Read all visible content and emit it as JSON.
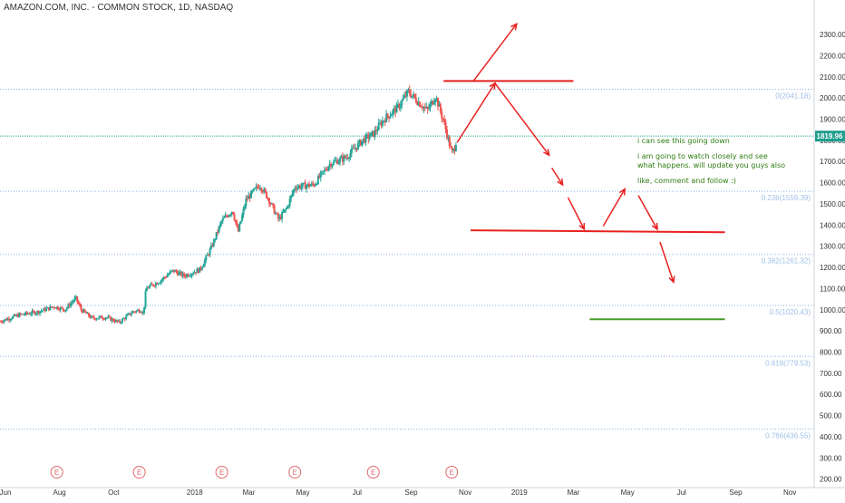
{
  "header": {
    "title": "AMAZON.COM, INC. - COMMON STOCK, 1D, NASDAQ"
  },
  "chart_data": {
    "type": "candlestick",
    "symbol": "AMAZON.COM, INC. - COMMON STOCK",
    "interval": "1D",
    "exchange": "NASDAQ",
    "ylim": [
      160,
      2420
    ],
    "y_ticks": [
      200,
      300,
      400,
      500,
      600,
      700,
      800,
      900,
      1000,
      1100,
      1200,
      1300,
      1400,
      1500,
      1600,
      1700,
      1800,
      1900,
      2000,
      2100,
      2200,
      2300
    ],
    "y_tick_labels": [
      "200.00",
      "300.00",
      "400.00",
      "500.00",
      "600.00",
      "700.00",
      "800.00",
      "900.00",
      "1000.00",
      "1100.00",
      "1200.00",
      "1300.00",
      "1400.00",
      "1500.00",
      "1600.00",
      "1700.00",
      "1800.00",
      "1900.00",
      "2000.00",
      "2100.00",
      "2200.00",
      "2300.00"
    ],
    "x_axis_labels": [
      "Jun",
      "Aug",
      "Oct",
      "2018",
      "Mar",
      "May",
      "Jul",
      "Sep",
      "Nov",
      "2019",
      "Mar",
      "May",
      "Jul",
      "Sep",
      "Nov"
    ],
    "x_label_months_index": [
      0,
      2,
      4,
      7,
      9,
      11,
      13,
      15,
      17,
      19,
      21,
      23,
      25,
      27,
      29
    ],
    "x_range_months_index": [
      -0.2,
      29.9
    ],
    "current_price": 1819.96,
    "current_price_label": "1819.96",
    "price_key_points": [
      {
        "m": -0.2,
        "v": 945
      },
      {
        "m": 0.5,
        "v": 975
      },
      {
        "m": 1.2,
        "v": 990
      },
      {
        "m": 1.8,
        "v": 1015
      },
      {
        "m": 2.2,
        "v": 1000
      },
      {
        "m": 2.6,
        "v": 1055
      },
      {
        "m": 2.8,
        "v": 1000
      },
      {
        "m": 3.2,
        "v": 960
      },
      {
        "m": 3.7,
        "v": 965
      },
      {
        "m": 4.2,
        "v": 940
      },
      {
        "m": 4.7,
        "v": 990
      },
      {
        "m": 5.0,
        "v": 1000
      },
      {
        "m": 5.1,
        "v": 980
      },
      {
        "m": 5.2,
        "v": 1100
      },
      {
        "m": 5.7,
        "v": 1135
      },
      {
        "m": 6.2,
        "v": 1185
      },
      {
        "m": 6.6,
        "v": 1160
      },
      {
        "m": 7.2,
        "v": 1190
      },
      {
        "m": 7.6,
        "v": 1290
      },
      {
        "m": 8.0,
        "v": 1420
      },
      {
        "m": 8.4,
        "v": 1470
      },
      {
        "m": 8.6,
        "v": 1365
      },
      {
        "m": 8.9,
        "v": 1520
      },
      {
        "m": 9.4,
        "v": 1590
      },
      {
        "m": 9.7,
        "v": 1530
      },
      {
        "m": 10.1,
        "v": 1425
      },
      {
        "m": 10.4,
        "v": 1480
      },
      {
        "m": 10.7,
        "v": 1580
      },
      {
        "m": 11.4,
        "v": 1590
      },
      {
        "m": 12.0,
        "v": 1690
      },
      {
        "m": 12.6,
        "v": 1720
      },
      {
        "m": 13.2,
        "v": 1800
      },
      {
        "m": 13.6,
        "v": 1830
      },
      {
        "m": 14.0,
        "v": 1900
      },
      {
        "m": 14.5,
        "v": 1955
      },
      {
        "m": 14.9,
        "v": 2030
      },
      {
        "m": 15.2,
        "v": 1990
      },
      {
        "m": 15.6,
        "v": 1940
      },
      {
        "m": 15.9,
        "v": 2010
      },
      {
        "m": 16.2,
        "v": 1890
      },
      {
        "m": 16.5,
        "v": 1740
      },
      {
        "m": 16.6,
        "v": 1760
      },
      {
        "m": 16.7,
        "v": 1820
      }
    ],
    "fib_levels": [
      {
        "ratio": "0",
        "price": 2041.18,
        "label": "0(2041.18)"
      },
      {
        "ratio": "0.236",
        "price": 1559.39,
        "label": "0.236(1559.39)"
      },
      {
        "ratio": "0.382",
        "price": 1261.32,
        "label": "0.382(1261.32)"
      },
      {
        "ratio": "0.5",
        "price": 1020.43,
        "label": "0.5(1020.43)"
      },
      {
        "ratio": "0.618",
        "price": 779.53,
        "label": "0.618(779.53)"
      },
      {
        "ratio": "0.786",
        "price": 436.55,
        "label": "0.786(436.55)"
      }
    ],
    "earnings_markers": {
      "label": "E",
      "months_index": [
        1.9,
        4.95,
        8.0,
        10.7,
        13.6,
        16.5
      ]
    },
    "annotations": {
      "horizontal_lines": [
        {
          "color": "#e8211f",
          "from": {
            "m": 16.2,
            "v": 2080
          },
          "to": {
            "m": 21.0,
            "v": 2080
          }
        },
        {
          "color": "#e8211f",
          "from": {
            "m": 17.2,
            "v": 1375
          },
          "to": {
            "m": 26.6,
            "v": 1366
          }
        },
        {
          "color": "#4c9b2c",
          "from": {
            "m": 21.6,
            "v": 955
          },
          "to": {
            "m": 26.6,
            "v": 955
          }
        }
      ],
      "arrows": [
        {
          "color": "#e8211f",
          "from": {
            "m": 17.3,
            "v": 2080
          },
          "to": {
            "m": 18.9,
            "v": 2350
          }
        },
        {
          "color": "#e8211f",
          "from": {
            "m": 16.7,
            "v": 1790
          },
          "to": {
            "m": 18.1,
            "v": 2070
          }
        },
        {
          "color": "#e8211f",
          "from": {
            "m": 18.1,
            "v": 2070
          },
          "to": {
            "m": 20.1,
            "v": 1730
          }
        },
        {
          "color": "#e8211f",
          "from": {
            "m": 20.2,
            "v": 1670
          },
          "to": {
            "m": 20.6,
            "v": 1590
          }
        },
        {
          "color": "#e8211f",
          "from": {
            "m": 20.8,
            "v": 1530
          },
          "to": {
            "m": 21.4,
            "v": 1380
          }
        },
        {
          "color": "#e8211f",
          "from": {
            "m": 22.1,
            "v": 1395
          },
          "to": {
            "m": 22.9,
            "v": 1570
          }
        },
        {
          "color": "#e8211f",
          "from": {
            "m": 23.4,
            "v": 1540
          },
          "to": {
            "m": 24.1,
            "v": 1380
          }
        },
        {
          "color": "#e8211f",
          "from": {
            "m": 24.2,
            "v": 1320
          },
          "to": {
            "m": 24.7,
            "v": 1130
          }
        }
      ]
    },
    "notes": [
      "i can see this going down",
      "i am going to watch closely and see",
      "what happens. will update you guys also",
      "like, comment and follow :)"
    ],
    "colors": {
      "up": "#26a69a",
      "down": "#ef5350",
      "fib": "#8fb4e4",
      "fib_text": "#9fbfe6",
      "current_price_line": "#26a69a",
      "current_price_tag": "#1f9e8e",
      "axis_text": "#333333",
      "drawing_red": "#e8211f",
      "drawing_green": "#4c9b2c",
      "note_text": "#2e7d12",
      "earnings_marker": "#e06b6b"
    },
    "grid": false,
    "legend": "none"
  }
}
